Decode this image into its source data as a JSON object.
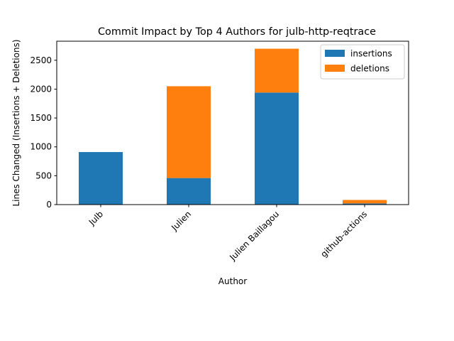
{
  "chart_data": {
    "type": "bar",
    "stacked": true,
    "title": "Commit Impact by Top 4 Authors for julb-http-reqtrace",
    "xlabel": "Author",
    "ylabel": "Lines Changed (Insertions + Deletions)",
    "categories": [
      "Julb",
      "Julien",
      "Julien Baillagou",
      "github-actions"
    ],
    "series": [
      {
        "name": "insertions",
        "values": [
          910,
          460,
          1940,
          20
        ],
        "color": "#1f77b4"
      },
      {
        "name": "deletions",
        "values": [
          0,
          1590,
          760,
          60
        ],
        "color": "#ff7f0e"
      }
    ],
    "ylim": [
      0,
      2830
    ],
    "yticks": [
      0,
      500,
      1000,
      1500,
      2000,
      2500
    ],
    "grid": false,
    "legend_position": "top-right"
  }
}
